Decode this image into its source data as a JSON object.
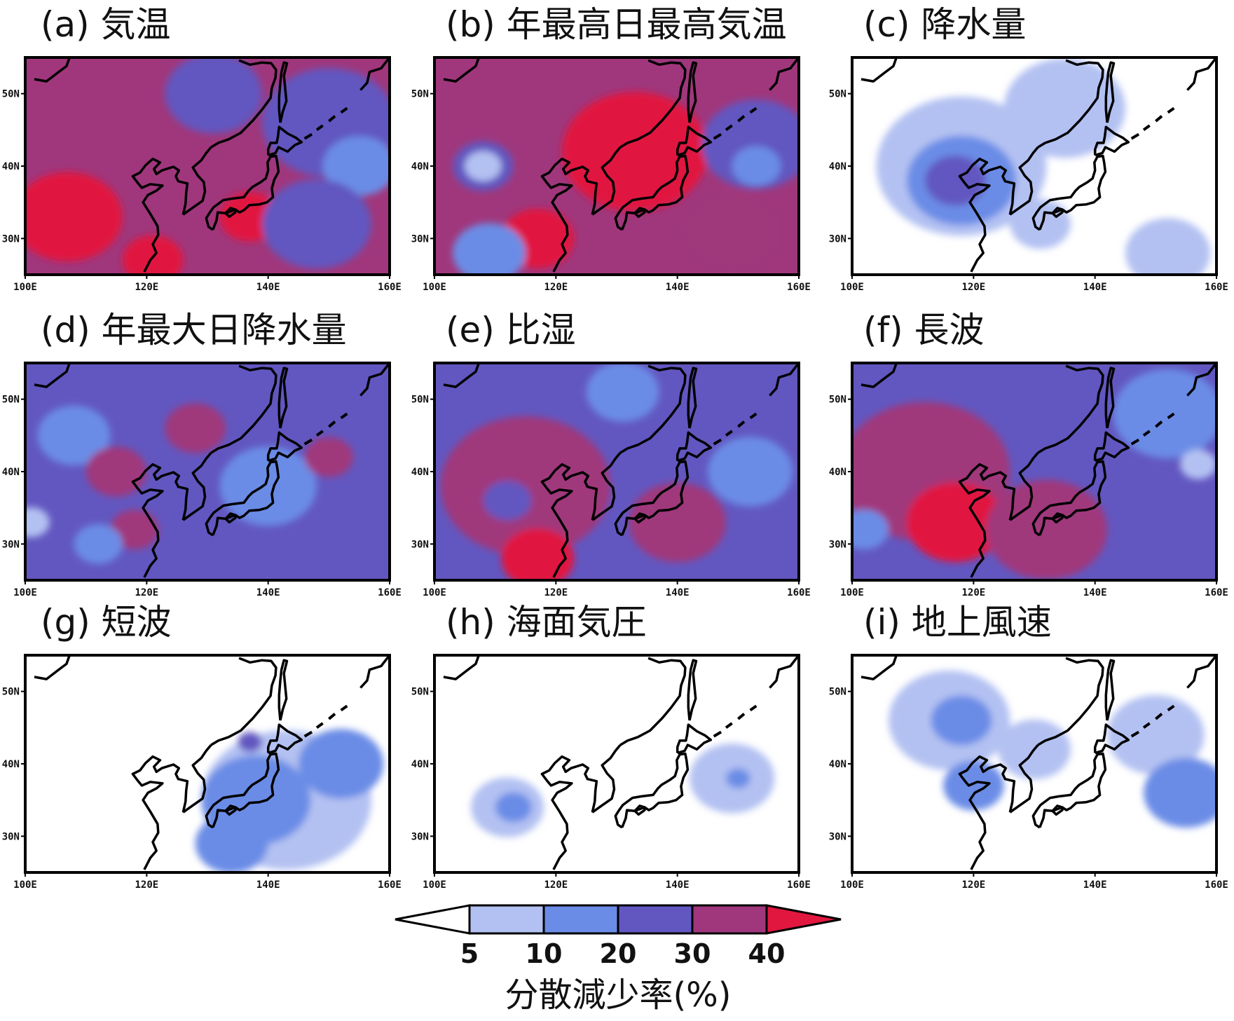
{
  "colors": {
    "levels": [
      "#ffffff",
      "#b3c1f2",
      "#6b8ce6",
      "#6257c0",
      "#a0377c",
      "#e1173f"
    ],
    "land_mask": "#333333",
    "coast": "#000000"
  },
  "chart_data": {
    "type": "heatmap",
    "panel_layout": "3x3 grid",
    "x_ticks": [
      "100E",
      "120E",
      "140E",
      "160E"
    ],
    "y_ticks": [
      "50N",
      "40N",
      "30N"
    ],
    "xlim": [
      100,
      160
    ],
    "ylim": [
      25,
      55
    ],
    "colorbar": {
      "boundaries": [
        "5",
        "10",
        "20",
        "30",
        "40"
      ],
      "label": "分散減少率(%)",
      "extend": "both"
    },
    "panels": [
      {
        "label": "(a) 気温",
        "dominant_level": 4,
        "patches": [
          {
            "lon": 107,
            "lat": 33,
            "r": 9,
            "level": 5
          },
          {
            "lon": 121,
            "lat": 27,
            "r": 5,
            "level": 5
          },
          {
            "lon": 137,
            "lat": 33,
            "r": 5,
            "level": 5
          },
          {
            "lon": 150,
            "lat": 46,
            "r": 11,
            "level": 3
          },
          {
            "lon": 155,
            "lat": 40,
            "r": 6,
            "level": 2
          },
          {
            "lon": 148,
            "lat": 32,
            "r": 9,
            "level": 3
          },
          {
            "lon": 131,
            "lat": 50,
            "r": 8,
            "level": 3
          }
        ]
      },
      {
        "label": "(b) 年最高日最高気温",
        "dominant_level": 4,
        "patches": [
          {
            "lon": 133,
            "lat": 42,
            "r": 12,
            "level": 5
          },
          {
            "lon": 117,
            "lat": 30,
            "r": 6,
            "level": 5
          },
          {
            "lon": 109,
            "lat": 28,
            "r": 6,
            "level": 2
          },
          {
            "lon": 108,
            "lat": 40,
            "r": 5,
            "level": 3
          },
          {
            "lon": 108,
            "lat": 40,
            "r": 3,
            "level": 1
          },
          {
            "lon": 153,
            "lat": 43,
            "r": 9,
            "level": 3
          },
          {
            "lon": 153,
            "lat": 40,
            "r": 4,
            "level": 2
          },
          {
            "lon": 149,
            "lat": 31,
            "r": 8,
            "level": 4
          }
        ]
      },
      {
        "label": "(c) 降水量",
        "dominant_level": 0,
        "patches": [
          {
            "lon": 118,
            "lat": 40,
            "r": 14,
            "level": 1
          },
          {
            "lon": 118,
            "lat": 38,
            "r": 9,
            "level": 2
          },
          {
            "lon": 117,
            "lat": 38,
            "r": 5,
            "level": 3
          },
          {
            "lon": 135,
            "lat": 48,
            "r": 10,
            "level": 1
          },
          {
            "lon": 152,
            "lat": 28,
            "r": 7,
            "level": 1
          },
          {
            "lon": 131,
            "lat": 32,
            "r": 5,
            "level": 1
          }
        ]
      },
      {
        "label": "(d) 年最大日降水量",
        "dominant_level": 3,
        "patches": [
          {
            "lon": 108,
            "lat": 45,
            "r": 6,
            "level": 2
          },
          {
            "lon": 140,
            "lat": 38,
            "r": 8,
            "level": 2
          },
          {
            "lon": 115,
            "lat": 40,
            "r": 5,
            "level": 4
          },
          {
            "lon": 128,
            "lat": 46,
            "r": 5,
            "level": 4
          },
          {
            "lon": 118,
            "lat": 32,
            "r": 4,
            "level": 4
          },
          {
            "lon": 150,
            "lat": 42,
            "r": 4,
            "level": 4
          },
          {
            "lon": 112,
            "lat": 30,
            "r": 4,
            "level": 2
          },
          {
            "lon": 101,
            "lat": 33,
            "r": 3,
            "level": 1
          }
        ]
      },
      {
        "label": "(e) 比湿",
        "dominant_level": 3,
        "patches": [
          {
            "lon": 115,
            "lat": 38,
            "r": 14,
            "level": 4
          },
          {
            "lon": 117,
            "lat": 28,
            "r": 6,
            "level": 5
          },
          {
            "lon": 112,
            "lat": 36,
            "r": 4,
            "level": 3
          },
          {
            "lon": 152,
            "lat": 40,
            "r": 7,
            "level": 2
          },
          {
            "lon": 131,
            "lat": 51,
            "r": 6,
            "level": 2
          },
          {
            "lon": 140,
            "lat": 33,
            "r": 8,
            "level": 4
          }
        ]
      },
      {
        "label": "(f) 長波",
        "dominant_level": 3,
        "patches": [
          {
            "lon": 112,
            "lat": 40,
            "r": 14,
            "level": 4
          },
          {
            "lon": 117,
            "lat": 33,
            "r": 8,
            "level": 5
          },
          {
            "lon": 132,
            "lat": 32,
            "r": 10,
            "level": 4
          },
          {
            "lon": 152,
            "lat": 48,
            "r": 9,
            "level": 2
          },
          {
            "lon": 157,
            "lat": 41,
            "r": 3,
            "level": 1
          },
          {
            "lon": 102,
            "lat": 32,
            "r": 4,
            "level": 2
          }
        ]
      },
      {
        "label": "(g) 短波",
        "dominant_level": 0,
        "patches": [
          {
            "lon": 143,
            "lat": 35,
            "r": 14,
            "level": 1
          },
          {
            "lon": 138,
            "lat": 35,
            "r": 9,
            "level": 2
          },
          {
            "lon": 152,
            "lat": 40,
            "r": 7,
            "level": 2
          },
          {
            "lon": 134,
            "lat": 29,
            "r": 6,
            "level": 2
          },
          {
            "lon": 137,
            "lat": 43,
            "r": 2,
            "level": 3
          }
        ]
      },
      {
        "label": "(h) 海面気圧",
        "dominant_level": 0,
        "patches": [
          {
            "lon": 112,
            "lat": 34,
            "r": 6,
            "level": 1
          },
          {
            "lon": 113,
            "lat": 34,
            "r": 3,
            "level": 2
          },
          {
            "lon": 149,
            "lat": 38,
            "r": 7,
            "level": 1
          },
          {
            "lon": 150,
            "lat": 38,
            "r": 2,
            "level": 2
          }
        ]
      },
      {
        "label": "(i) 地上風速",
        "dominant_level": 0,
        "patches": [
          {
            "lon": 116,
            "lat": 46,
            "r": 10,
            "level": 1
          },
          {
            "lon": 118,
            "lat": 46,
            "r": 5,
            "level": 2
          },
          {
            "lon": 150,
            "lat": 44,
            "r": 8,
            "level": 1
          },
          {
            "lon": 155,
            "lat": 36,
            "r": 7,
            "level": 2
          },
          {
            "lon": 130,
            "lat": 42,
            "r": 6,
            "level": 1
          },
          {
            "lon": 120,
            "lat": 37,
            "r": 5,
            "level": 2
          }
        ]
      }
    ]
  }
}
